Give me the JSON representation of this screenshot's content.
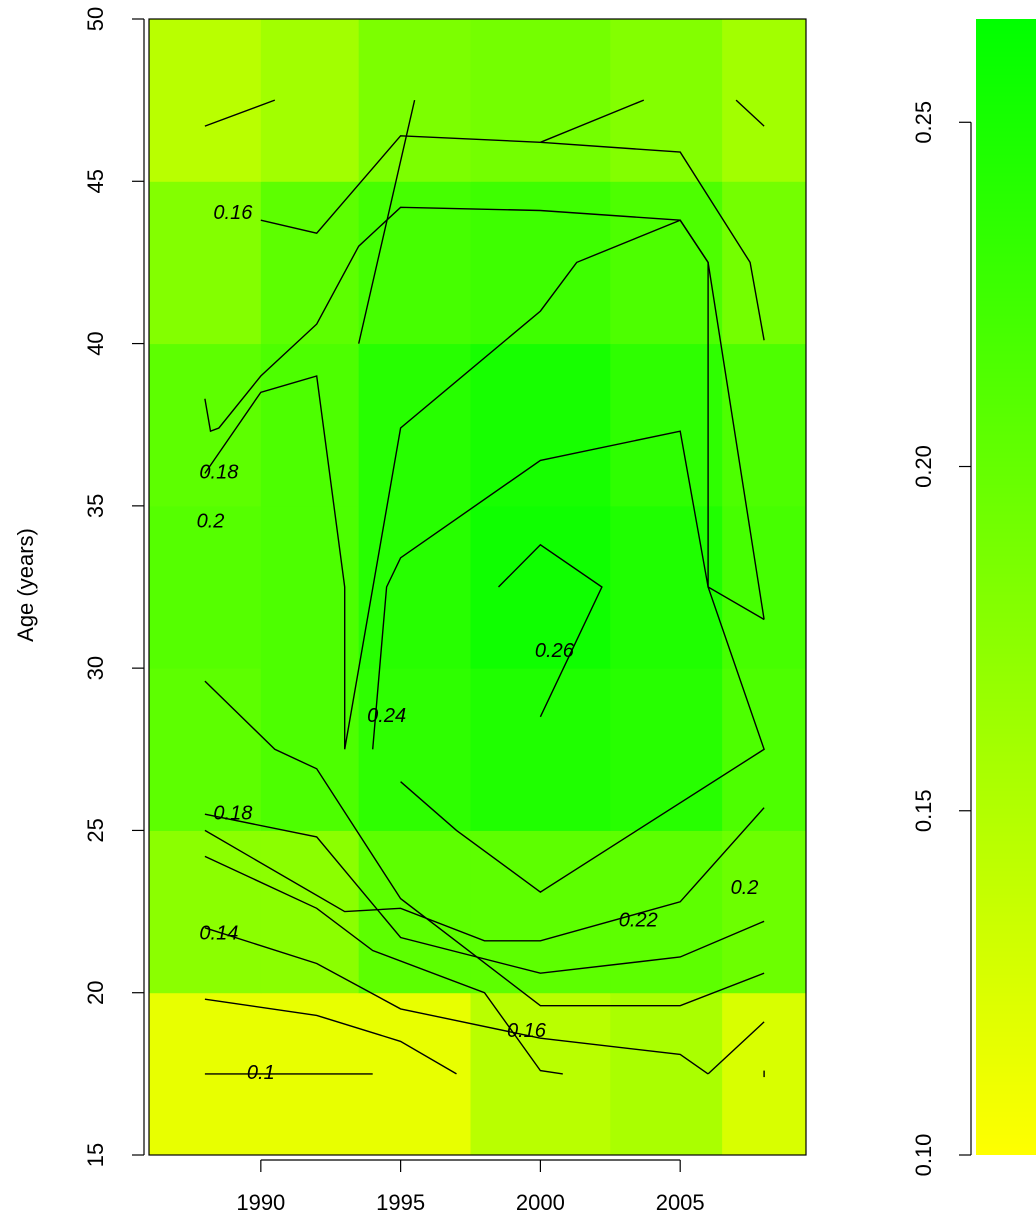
{
  "chart_data": {
    "type": "heatmap",
    "title": "",
    "xlabel": "",
    "ylabel": "Age (years)",
    "xlim": [
      1986,
      2009.5
    ],
    "ylim": [
      15,
      50
    ],
    "x_ticks": [
      "1990",
      "1995",
      "2000",
      "2005"
    ],
    "x_tick_values": [
      1990,
      1995,
      2000,
      2005
    ],
    "y_ticks": [
      "15",
      "20",
      "25",
      "30",
      "35",
      "40",
      "45",
      "50"
    ],
    "y_tick_values": [
      15,
      20,
      25,
      30,
      35,
      40,
      45,
      50
    ],
    "x_bins": [
      1986,
      1990,
      1993.5,
      1997.5,
      2002.5,
      2006.5,
      2009.5
    ],
    "y_bins": [
      15,
      20,
      25,
      30,
      35,
      40,
      45,
      50
    ],
    "values": [
      [
        0.115,
        0.115,
        0.115,
        0.145,
        0.155,
        0.125
      ],
      [
        0.175,
        0.175,
        0.205,
        0.205,
        0.205,
        0.195
      ],
      [
        0.205,
        0.215,
        0.235,
        0.245,
        0.24,
        0.215
      ],
      [
        0.21,
        0.215,
        0.24,
        0.255,
        0.245,
        0.22
      ],
      [
        0.205,
        0.215,
        0.24,
        0.25,
        0.235,
        0.215
      ],
      [
        0.18,
        0.205,
        0.22,
        0.225,
        0.215,
        0.19
      ],
      [
        0.145,
        0.16,
        0.185,
        0.19,
        0.18,
        0.16
      ]
    ],
    "color_scale": {
      "min": 0.1,
      "max": 0.265,
      "low_color": "#ffff00",
      "high_color": "#00ff00",
      "ticks": [
        "0.10",
        "0.15",
        "0.20",
        "0.25"
      ],
      "tick_values": [
        0.1,
        0.15,
        0.2,
        0.25
      ]
    },
    "contours": [
      {
        "level": "0.1",
        "label_at": [
          1990,
          17.5
        ],
        "points": [
          [
            1988,
            17.5
          ],
          [
            1994,
            17.5
          ]
        ]
      },
      {
        "level": "",
        "points": [
          [
            1988,
            19.8
          ],
          [
            1992,
            19.3
          ],
          [
            1995,
            18.5
          ],
          [
            1997,
            17.5
          ]
        ]
      },
      {
        "level": "0.14",
        "label_at": [
          1988.5,
          21.8
        ],
        "points": [
          [
            1988,
            24.2
          ],
          [
            1992,
            22.6
          ],
          [
            1994,
            21.3
          ],
          [
            1998,
            20.0
          ],
          [
            2000,
            17.6
          ],
          [
            2000.8,
            17.5
          ]
        ]
      },
      {
        "level": "0.16",
        "label_at": [
          1999.5,
          18.8
        ],
        "points": [
          [
            1988,
            22.0
          ],
          [
            1992,
            20.9
          ],
          [
            1995,
            19.5
          ],
          [
            2000,
            18.6
          ],
          [
            2005,
            18.1
          ],
          [
            2006,
            17.5
          ]
        ]
      },
      {
        "level": "",
        "points": [
          [
            2006,
            17.5
          ],
          [
            2008,
            19.1
          ]
        ]
      },
      {
        "level": "",
        "points": [
          [
            2008,
            17.6
          ],
          [
            2008,
            17.4
          ]
        ]
      },
      {
        "level": "0.18",
        "label_at": [
          1989,
          25.5
        ],
        "points": [
          [
            1988,
            29.6
          ],
          [
            1990.5,
            27.5
          ],
          [
            1992,
            26.9
          ],
          [
            1995,
            22.9
          ],
          [
            2000,
            19.6
          ],
          [
            2005,
            19.6
          ],
          [
            2008,
            20.6
          ]
        ]
      },
      {
        "level": "0.2",
        "label_at": [
          2007.3,
          23.2
        ],
        "points": [
          [
            1988,
            25.5
          ],
          [
            1992,
            24.8
          ],
          [
            1995,
            21.7
          ],
          [
            2000,
            20.6
          ],
          [
            2005,
            21.1
          ],
          [
            2008,
            22.2
          ]
        ]
      },
      {
        "level": "0.22",
        "label_at": [
          2003.5,
          22.2
        ],
        "points": [
          [
            1988,
            25.0
          ],
          [
            1993,
            22.5
          ],
          [
            1995,
            22.6
          ],
          [
            1998,
            21.6
          ],
          [
            2000,
            21.6
          ],
          [
            2005,
            22.8
          ],
          [
            2008,
            25.7
          ]
        ]
      },
      {
        "level": "0.24",
        "label_at": [
          1994.5,
          28.5
        ],
        "points": [
          [
            1995,
            26.5
          ],
          [
            1997,
            25.0
          ],
          [
            2000,
            23.1
          ],
          [
            2008,
            27.5
          ],
          [
            2006,
            32.5
          ],
          [
            2005,
            37.3
          ],
          [
            2000,
            36.4
          ],
          [
            1995,
            33.4
          ],
          [
            1994.5,
            32.5
          ],
          [
            1994,
            27.5
          ]
        ]
      },
      {
        "level": "0.26",
        "label_at": [
          2000.5,
          30.5
        ],
        "points": [
          [
            1998.5,
            32.5
          ],
          [
            2000,
            33.8
          ],
          [
            2002.2,
            32.5
          ],
          [
            2000,
            28.5
          ]
        ]
      },
      {
        "level": "0.18",
        "label_at": [
          1988.5,
          36.0
        ],
        "points": [
          [
            1988,
            38.3
          ],
          [
            1988.2,
            37.3
          ],
          [
            1988.5,
            37.4
          ],
          [
            1990,
            39.0
          ],
          [
            1992,
            40.6
          ],
          [
            1993.5,
            43.0
          ],
          [
            1995,
            44.2
          ],
          [
            2000,
            44.1
          ],
          [
            2005,
            43.8
          ],
          [
            2006,
            42.5
          ],
          [
            2008,
            31.5
          ]
        ]
      },
      {
        "level": "0.2",
        "label_at": [
          1988.2,
          34.5
        ],
        "points": [
          [
            1988,
            36.0
          ],
          [
            1990,
            38.5
          ],
          [
            1992,
            39.0
          ],
          [
            1993,
            32.5
          ],
          [
            1993,
            27.5
          ],
          [
            1995,
            37.4
          ],
          [
            2000,
            41.0
          ],
          [
            2001.3,
            42.5
          ],
          [
            2005,
            43.8
          ],
          [
            2006,
            42.5
          ],
          [
            2006,
            32.5
          ],
          [
            2008,
            31.5
          ]
        ]
      },
      {
        "level": "0.16",
        "label_at": [
          1989,
          44.0
        ],
        "points": [
          [
            1990,
            43.8
          ],
          [
            1992,
            43.4
          ],
          [
            1995,
            46.4
          ],
          [
            2000,
            46.2
          ],
          [
            2005,
            45.9
          ],
          [
            2007.5,
            42.5
          ],
          [
            2008,
            40.1
          ]
        ]
      },
      {
        "level": "",
        "points": [
          [
            1988,
            46.7
          ],
          [
            1990.5,
            47.5
          ]
        ]
      },
      {
        "level": "",
        "points": [
          [
            1993.5,
            40.0
          ],
          [
            1995.5,
            47.5
          ]
        ]
      },
      {
        "level": "",
        "points": [
          [
            2000,
            46.2
          ],
          [
            2003.7,
            47.5
          ]
        ]
      },
      {
        "level": "",
        "points": [
          [
            2007,
            47.5
          ],
          [
            2008,
            46.7
          ]
        ]
      }
    ]
  }
}
